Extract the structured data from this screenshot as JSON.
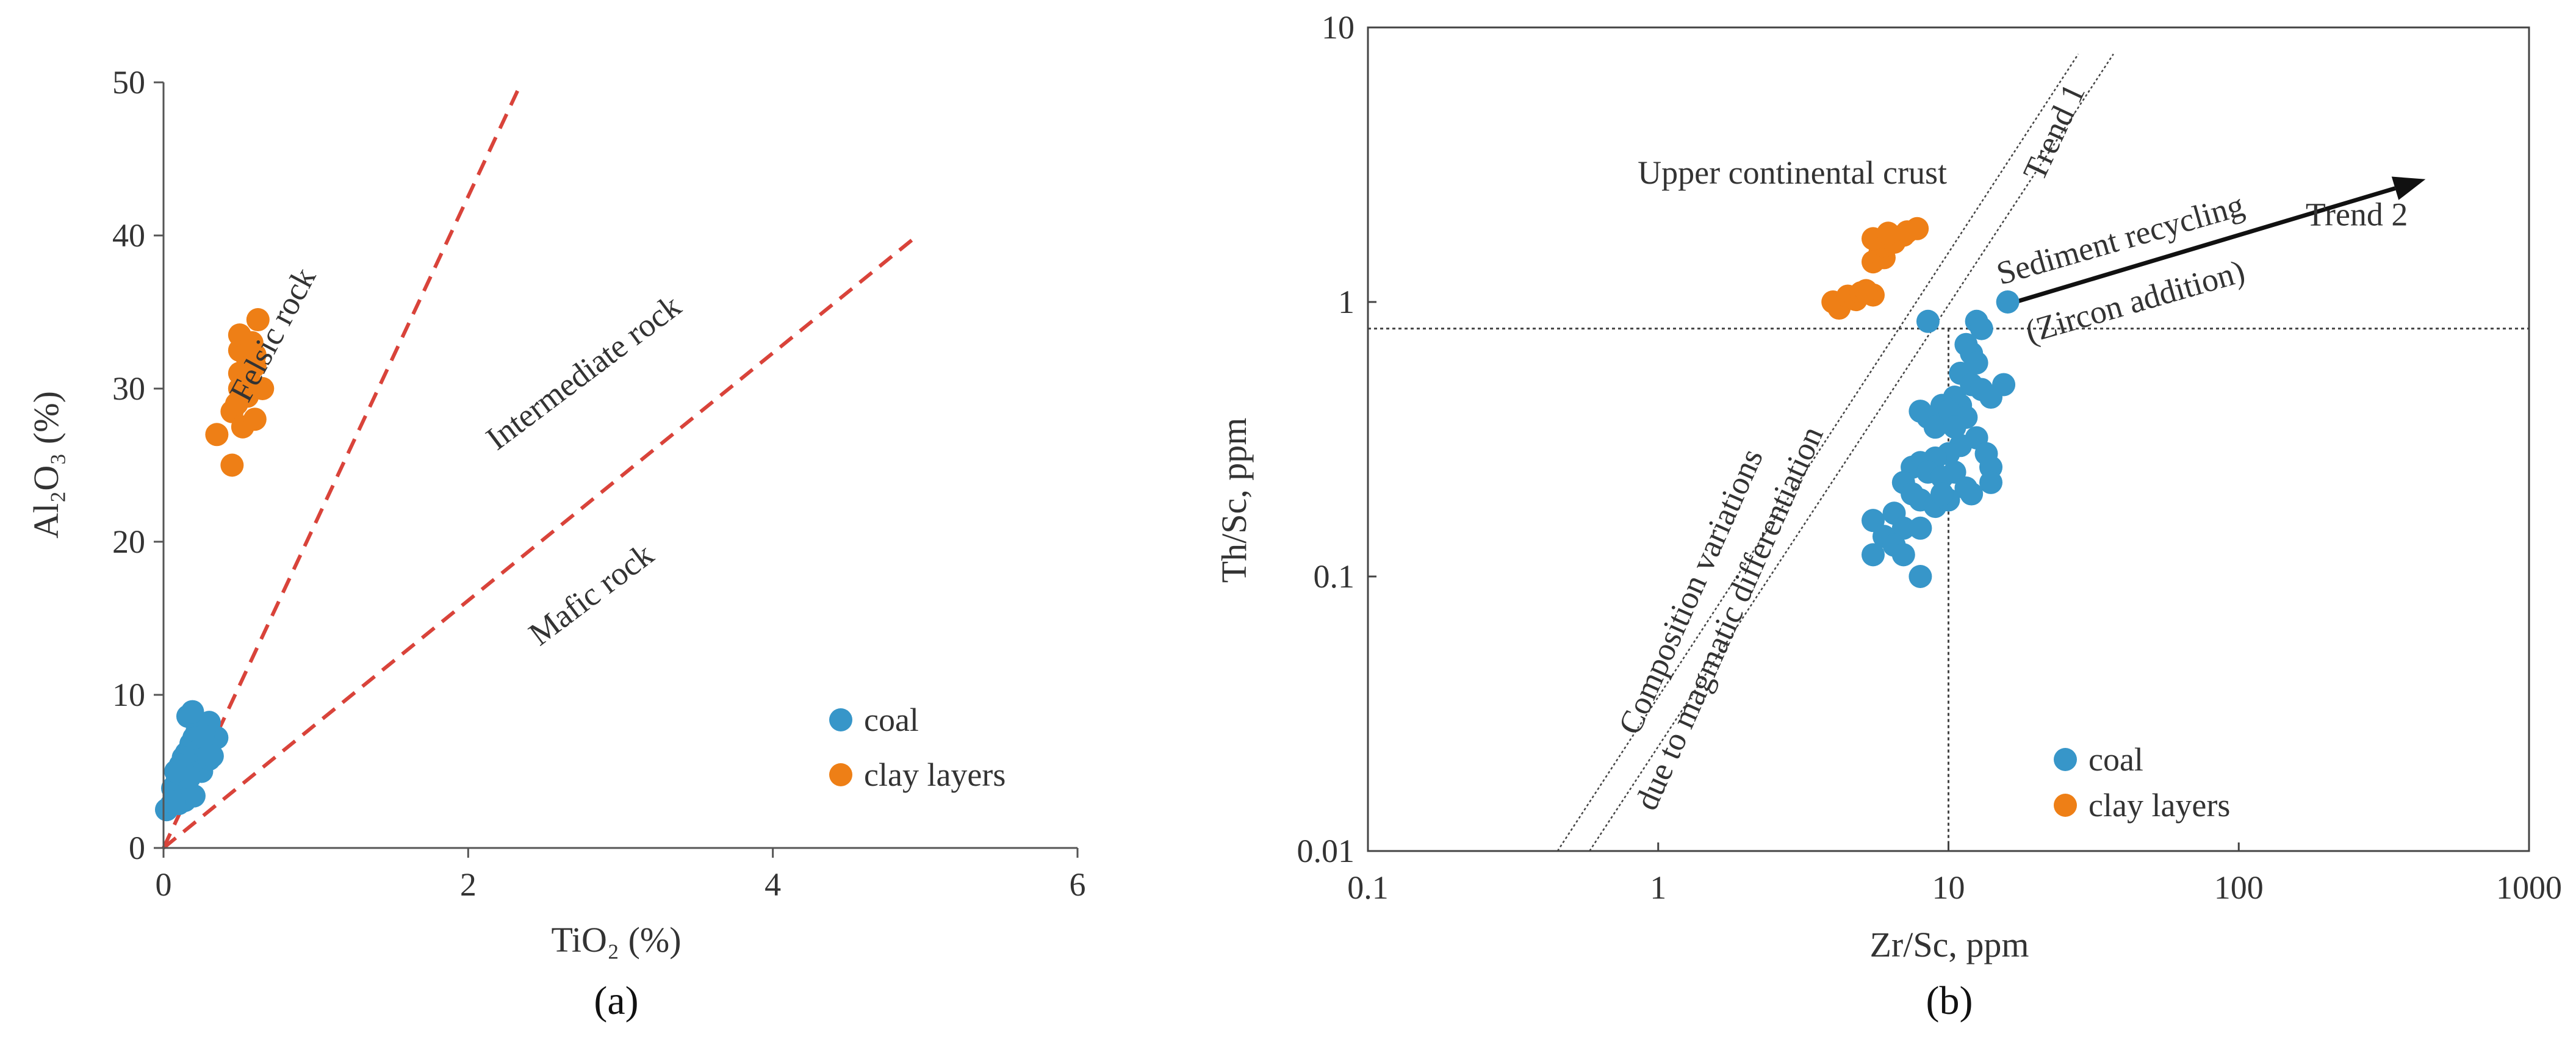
{
  "colors": {
    "coal": "#3796c9",
    "clay": "#ee7f16",
    "line": "#d9433a",
    "axis": "#555555"
  },
  "chart_data": [
    {
      "panel_label": "(a)",
      "type": "scatter",
      "xlabel": "TiO₂ (%)",
      "ylabel": "Al₂O₃ (%)",
      "xlim": [
        0,
        6
      ],
      "ylim": [
        0,
        50
      ],
      "xticks": [
        0,
        2,
        4,
        6
      ],
      "yticks": [
        0,
        10,
        20,
        30,
        40,
        50
      ],
      "grid": false,
      "legend_position": "lower-right",
      "series": [
        {
          "name": "coal",
          "points": [
            [
              0.02,
              2.5
            ],
            [
              0.05,
              2.8
            ],
            [
              0.08,
              3.2
            ],
            [
              0.1,
              3.5
            ],
            [
              0.12,
              3.8
            ],
            [
              0.15,
              4.0
            ],
            [
              0.06,
              3.9
            ],
            [
              0.09,
              4.4
            ],
            [
              0.12,
              4.8
            ],
            [
              0.15,
              5.2
            ],
            [
              0.18,
              5.5
            ],
            [
              0.2,
              5.8
            ],
            [
              0.22,
              6.2
            ],
            [
              0.25,
              6.5
            ],
            [
              0.28,
              6.8
            ],
            [
              0.32,
              7.0
            ],
            [
              0.35,
              7.2
            ],
            [
              0.15,
              6.2
            ],
            [
              0.18,
              6.8
            ],
            [
              0.2,
              7.2
            ],
            [
              0.22,
              7.6
            ],
            [
              0.24,
              7.9
            ],
            [
              0.3,
              8.2
            ],
            [
              0.16,
              8.6
            ],
            [
              0.19,
              8.9
            ],
            [
              0.25,
              5.0
            ],
            [
              0.3,
              5.8
            ],
            [
              0.1,
              2.9
            ],
            [
              0.14,
              3.1
            ],
            [
              0.2,
              3.4
            ],
            [
              0.07,
              3.0
            ],
            [
              0.13,
              5.9
            ],
            [
              0.26,
              7.3
            ],
            [
              0.32,
              6.0
            ],
            [
              0.11,
              5.4
            ],
            [
              0.17,
              4.6
            ],
            [
              0.08,
              5.0
            ]
          ]
        },
        {
          "name": "clay layers",
          "points": [
            [
              0.35,
              27.0
            ],
            [
              0.45,
              25.0
            ],
            [
              0.45,
              28.5
            ],
            [
              0.52,
              27.5
            ],
            [
              0.5,
              30.0
            ],
            [
              0.55,
              29.5
            ],
            [
              0.6,
              28.0
            ],
            [
              0.5,
              31.0
            ],
            [
              0.55,
              32.0
            ],
            [
              0.5,
              32.5
            ],
            [
              0.6,
              31.5
            ],
            [
              0.65,
              30.0
            ],
            [
              0.5,
              33.5
            ],
            [
              0.58,
              33.0
            ],
            [
              0.62,
              34.5
            ],
            [
              0.48,
              29.0
            ],
            [
              0.56,
              30.8
            ],
            [
              0.6,
              32.2
            ]
          ]
        }
      ],
      "boundaries": [
        {
          "from": [
            0,
            0
          ],
          "to": [
            2.35,
            50
          ]
        },
        {
          "from": [
            0,
            0
          ],
          "to": [
            4.95,
            40
          ]
        }
      ],
      "annotations": [
        {
          "text": "Felsic rock",
          "x": 0.78,
          "y": 33.2,
          "rotate": -62
        },
        {
          "text": "Intermediate rock",
          "x": 2.8,
          "y": 30.5,
          "rotate": -37
        },
        {
          "text": "Mafic rock",
          "x": 2.85,
          "y": 16.0,
          "rotate": -37
        }
      ],
      "legend": [
        {
          "label": "coal",
          "series": "coal"
        },
        {
          "label": "clay layers",
          "series": "clay layers"
        }
      ]
    },
    {
      "panel_label": "(b)",
      "type": "scatter",
      "xlabel": "Zr/Sc, ppm",
      "ylabel": "Th/Sc, ppm",
      "xscale": "log",
      "yscale": "log",
      "xlim": [
        0.1,
        1000
      ],
      "ylim": [
        0.01,
        10
      ],
      "xticks": [
        "0.1",
        "1",
        "10",
        "100",
        "1000"
      ],
      "yticks": [
        "0.01",
        "0.1",
        "1",
        "10"
      ],
      "grid": false,
      "legend_position": "lower-right",
      "series": [
        {
          "name": "coal",
          "points": [
            [
              8.5,
              0.85
            ],
            [
              11.5,
              0.7
            ],
            [
              12.5,
              0.85
            ],
            [
              13,
              0.8
            ],
            [
              15.5,
              0.5
            ],
            [
              16,
              1.0
            ],
            [
              12,
              0.65
            ],
            [
              11,
              0.55
            ],
            [
              12,
              0.5
            ],
            [
              13,
              0.48
            ],
            [
              14,
              0.45
            ],
            [
              10.5,
              0.45
            ],
            [
              11,
              0.42
            ],
            [
              9.5,
              0.42
            ],
            [
              10,
              0.4
            ],
            [
              8,
              0.4
            ],
            [
              8.5,
              0.38
            ],
            [
              9,
              0.35
            ],
            [
              11.5,
              0.38
            ],
            [
              12.5,
              0.32
            ],
            [
              13.5,
              0.28
            ],
            [
              14,
              0.25
            ],
            [
              11,
              0.3
            ],
            [
              10,
              0.28
            ],
            [
              9,
              0.27
            ],
            [
              8,
              0.26
            ],
            [
              7.5,
              0.25
            ],
            [
              8.5,
              0.24
            ],
            [
              9.5,
              0.23
            ],
            [
              10.5,
              0.24
            ],
            [
              11.5,
              0.21
            ],
            [
              12,
              0.2
            ],
            [
              14,
              0.22
            ],
            [
              7,
              0.22
            ],
            [
              7.5,
              0.2
            ],
            [
              8,
              0.19
            ],
            [
              9,
              0.18
            ],
            [
              10,
              0.19
            ],
            [
              6.5,
              0.17
            ],
            [
              7,
              0.15
            ],
            [
              8,
              0.15
            ],
            [
              5.5,
              0.16
            ],
            [
              6,
              0.14
            ],
            [
              6.5,
              0.13
            ],
            [
              5.5,
              0.12
            ],
            [
              7,
              0.12
            ],
            [
              8,
              0.1
            ],
            [
              9.5,
              0.2
            ],
            [
              10.5,
              0.35
            ],
            [
              12.5,
              0.6
            ]
          ]
        },
        {
          "name": "clay layers",
          "points": [
            [
              4,
              1.0
            ],
            [
              4.2,
              0.95
            ],
            [
              4.5,
              1.05
            ],
            [
              4.8,
              1.02
            ],
            [
              5,
              1.08
            ],
            [
              5.5,
              1.06
            ],
            [
              5.2,
              1.1
            ],
            [
              5.5,
              1.4
            ],
            [
              5.8,
              1.5
            ],
            [
              6,
              1.45
            ],
            [
              6,
              1.6
            ],
            [
              6.3,
              1.7
            ],
            [
              6.5,
              1.65
            ],
            [
              7,
              1.75
            ],
            [
              7.2,
              1.8
            ],
            [
              7.8,
              1.85
            ],
            [
              5.5,
              1.7
            ],
            [
              6.2,
              1.78
            ]
          ]
        }
      ],
      "reference_lines": {
        "horizontal_y": 0.8,
        "vertical_x": 10,
        "trend1": {
          "from": [
            0.58,
            0.01
          ],
          "to": [
            37,
            8
          ]
        },
        "differentiation": {
          "from": [
            0.45,
            0.01
          ],
          "to": [
            28,
            8
          ]
        },
        "recycling_arrow": {
          "from": [
            17,
            1.0
          ],
          "to": [
            440,
            2.8
          ]
        }
      },
      "annotations": [
        {
          "text": "Upper continental crust",
          "x": 0.85,
          "y": 2.7,
          "rotate": 0
        },
        {
          "text": "Trend 1",
          "x": 25,
          "y": 4.0,
          "rotate": -65
        },
        {
          "text": "Sediment recycling",
          "x": 40,
          "y": 1.55,
          "rotate": -16
        },
        {
          "text": "(Zircon addition)",
          "x": 45,
          "y": 0.92,
          "rotate": -16
        },
        {
          "text": "Trend 2",
          "x": 170,
          "y": 1.9,
          "rotate": 0
        },
        {
          "text": "Composition variations",
          "x": 1.4,
          "y": 0.085,
          "rotate": -66
        },
        {
          "text": "due to magmatic differentiation",
          "x": 1.9,
          "y": 0.068,
          "rotate": -66
        }
      ],
      "legend": [
        {
          "label": "coal",
          "series": "coal"
        },
        {
          "label": "clay layers",
          "series": "clay layers"
        }
      ]
    }
  ]
}
